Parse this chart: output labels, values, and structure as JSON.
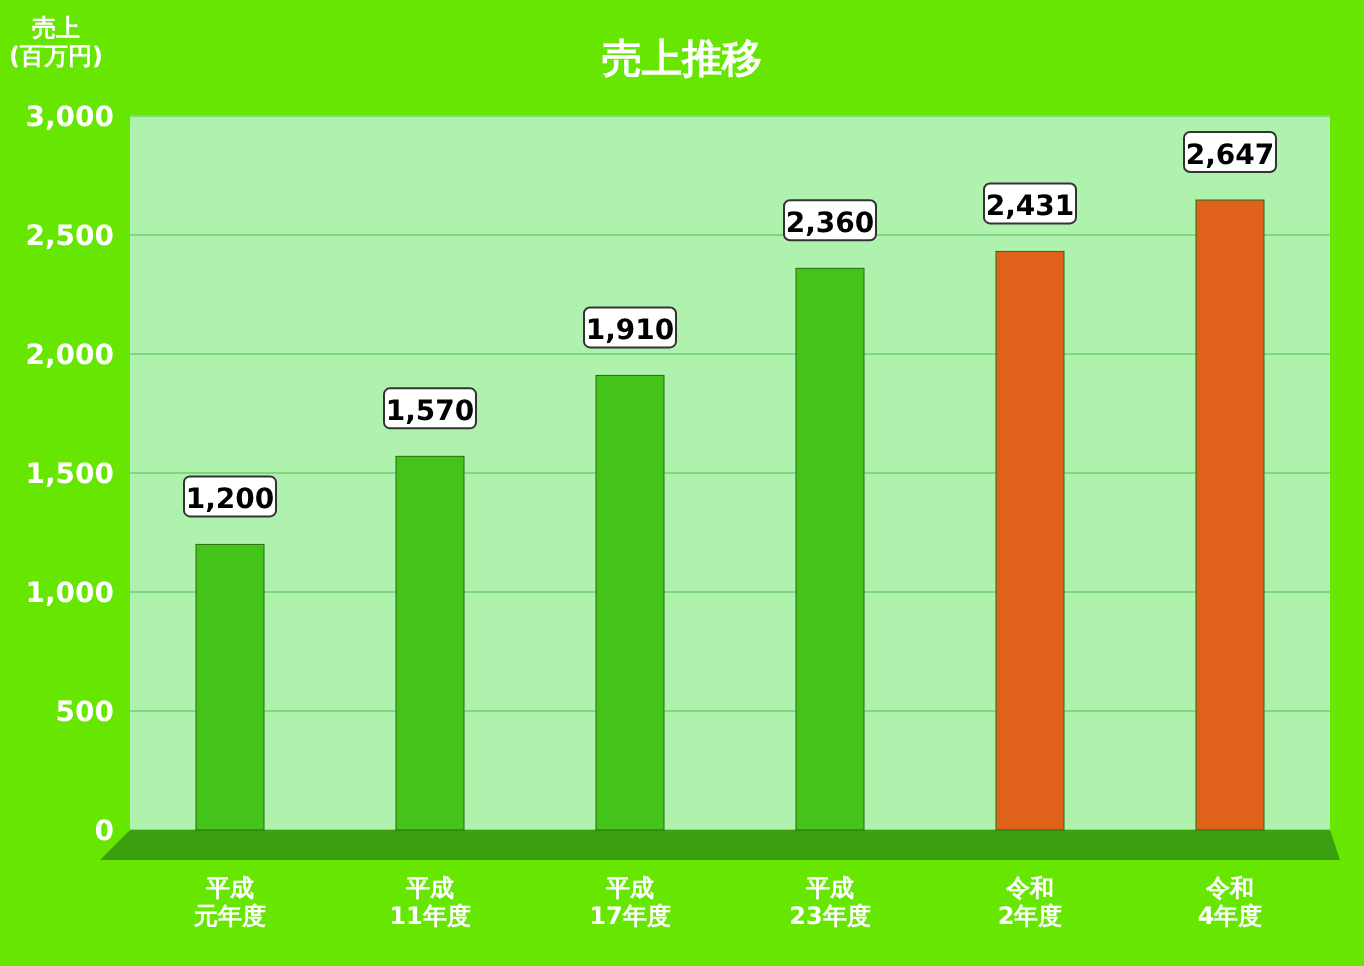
{
  "chart_data": {
    "type": "bar",
    "title": "売上推移",
    "ylabel": "売上\n(百万円)",
    "categories": [
      "平成元年度",
      "平成11年度",
      "平成17年度",
      "平成23年度",
      "令和2年度",
      "令和4年度"
    ],
    "values": [
      1200,
      1570,
      1910,
      2360,
      2431,
      2647
    ],
    "colors": [
      "#44c41a",
      "#44c41a",
      "#44c41a",
      "#44c41a",
      "#e0621a",
      "#e0621a"
    ],
    "value_labels": [
      "1,200",
      "1,570",
      "1,910",
      "2,360",
      "2,431",
      "2,647"
    ],
    "ylim": [
      0,
      3000
    ],
    "yticks": [
      {
        "value": 0,
        "label": "0"
      },
      {
        "value": 500,
        "label": "500"
      },
      {
        "value": 1000,
        "label": "1,000"
      },
      {
        "value": 1500,
        "label": "1,500"
      },
      {
        "value": 2000,
        "label": "2,000"
      },
      {
        "value": 2500,
        "label": "2,500"
      },
      {
        "value": 3000,
        "label": "3,000"
      }
    ],
    "grid": "y"
  }
}
